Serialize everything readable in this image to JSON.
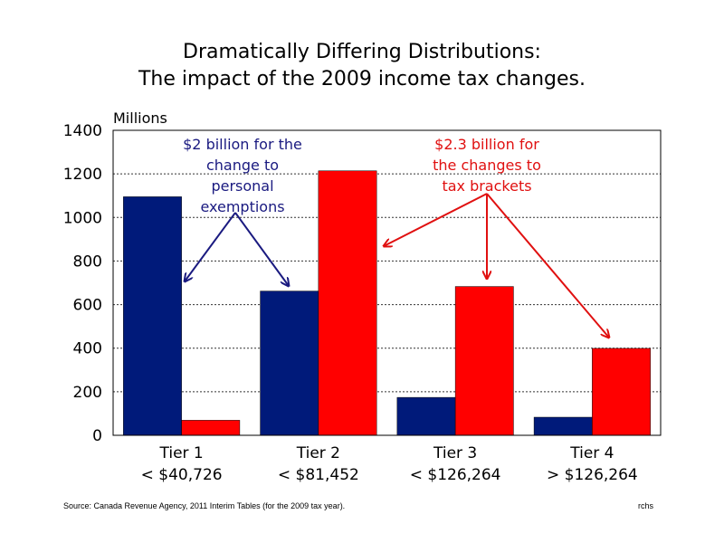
{
  "chart_data": {
    "type": "bar",
    "title": [
      "Dramatically Differing Distributions:",
      "The impact of the 2009 income tax changes."
    ],
    "ylabel": "Millions",
    "ylim": [
      0,
      1400
    ],
    "yticks": [
      "0",
      "200",
      "400",
      "600",
      "800",
      "1000",
      "1200",
      "1400"
    ],
    "grid": true,
    "categories": [
      [
        "Tier 1",
        "< $40,726"
      ],
      [
        "Tier 2",
        "< $81,452"
      ],
      [
        "Tier 3",
        "< $126,264"
      ],
      [
        "Tier 4",
        "> $126,264"
      ]
    ],
    "series": [
      {
        "values": [
          1095,
          662,
          174,
          83
        ],
        "color": "#001a7a"
      },
      {
        "values": [
          69,
          1214,
          683,
          399
        ],
        "color": "#ff0000"
      }
    ],
    "annotations": [
      {
        "lines": [
          "$2 billion for the",
          "change to",
          "personal",
          "exemptions"
        ],
        "color": "#1a1a80"
      },
      {
        "lines": [
          "$2.3 billion for",
          "the changes to",
          "tax brackets"
        ],
        "color": "#e01010"
      }
    ],
    "source": "Source: Canada Revenue Agency, 2011 Interim Tables  (for the 2009 tax year).",
    "credit": "rchs"
  }
}
